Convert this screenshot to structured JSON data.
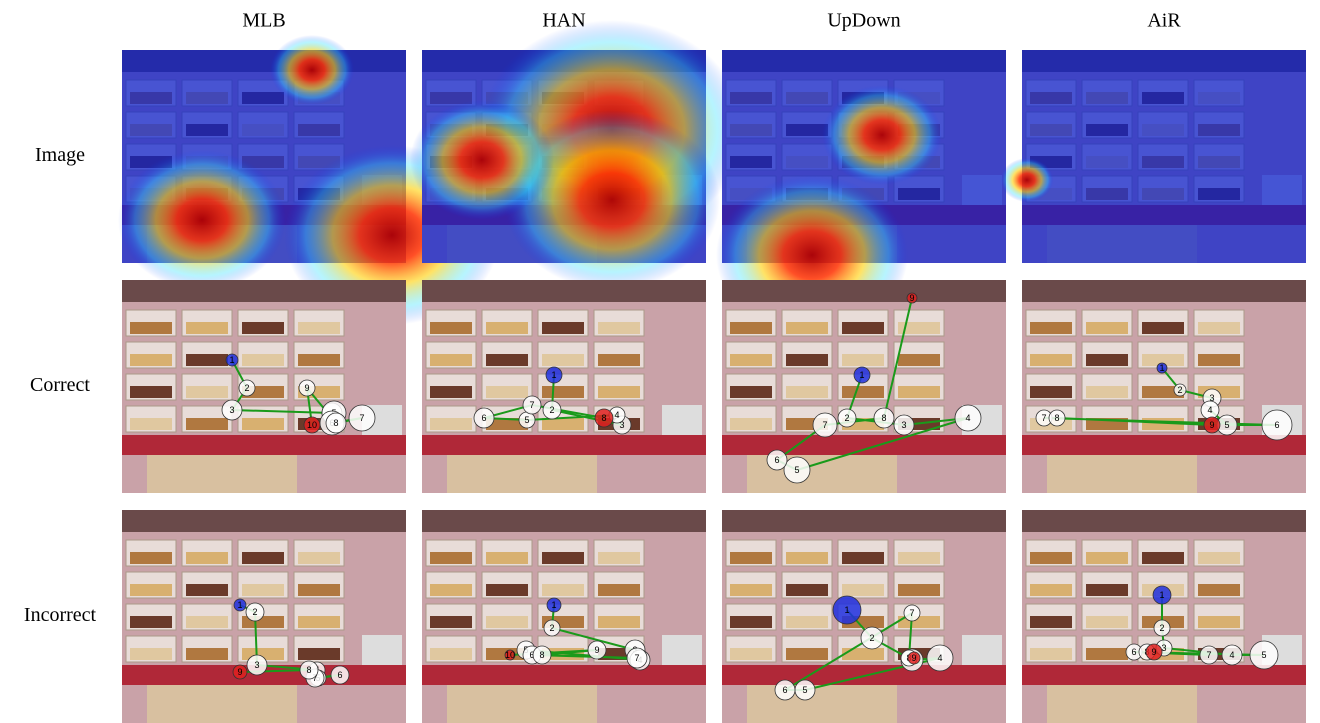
{
  "columns": [
    "MLB",
    "HAN",
    "UpDown",
    "AiR"
  ],
  "rows": [
    "Image",
    "Correct",
    "Incorrect"
  ],
  "scanpaths": {
    "correct": [
      [
        1,
        2,
        3,
        4,
        5,
        6,
        7,
        8,
        9,
        10
      ],
      [
        1,
        2,
        3,
        4,
        5,
        6,
        7,
        8
      ],
      [
        1,
        2,
        3,
        4,
        5,
        6,
        7,
        8,
        9
      ],
      [
        1,
        2,
        3,
        4,
        5,
        6,
        7,
        8,
        9
      ]
    ],
    "incorrect": [
      [
        1,
        2,
        3,
        4,
        5,
        6,
        7,
        8,
        9
      ],
      [
        1,
        2,
        3,
        4,
        5,
        6,
        7,
        8,
        9,
        10
      ],
      [
        1,
        2,
        3,
        4,
        5,
        6,
        7,
        8,
        9
      ],
      [
        1,
        2,
        3,
        4,
        5,
        6,
        7,
        8,
        9
      ]
    ]
  }
}
